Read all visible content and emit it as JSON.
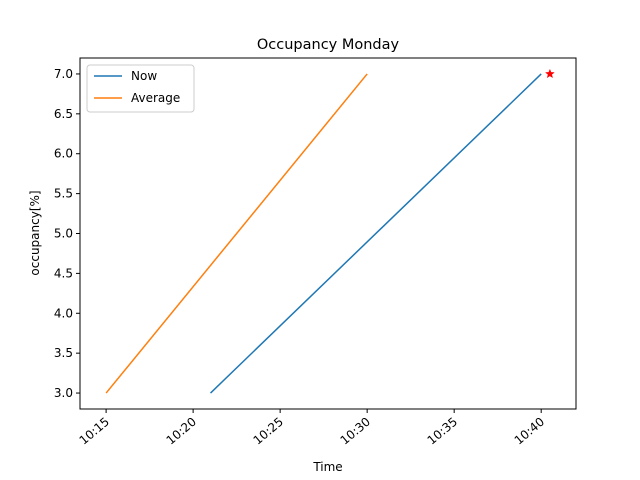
{
  "chart_data": {
    "type": "line",
    "title": "Occupancy Monday",
    "xlabel": "Time",
    "ylabel": "occupancy[%]",
    "x_ticks": [
      "10:15",
      "10:20",
      "10:25",
      "10:30",
      "10:35",
      "10:40"
    ],
    "x_tick_minutes": [
      15,
      20,
      25,
      30,
      35,
      40
    ],
    "xlim": [
      "10:13:30",
      "10:42:00"
    ],
    "xlim_minutes": [
      13.5,
      42.0
    ],
    "y_ticks": [
      "3.0",
      "3.5",
      "4.0",
      "4.5",
      "5.0",
      "5.5",
      "6.0",
      "6.5",
      "7.0"
    ],
    "ylim": [
      2.8,
      7.2
    ],
    "grid": false,
    "legend": "top-left",
    "series": [
      {
        "name": "Now",
        "color": "#1f77b4",
        "x": [
          "10:21",
          "10:40"
        ],
        "x_minutes": [
          21.0,
          40.0
        ],
        "y": [
          3.0,
          7.0
        ]
      },
      {
        "name": "Average",
        "color": "#ff7f0e",
        "x": [
          "10:15",
          "10:30"
        ],
        "x_minutes": [
          15.0,
          30.0
        ],
        "y": [
          3.0,
          7.0
        ]
      }
    ],
    "markers": [
      {
        "shape": "star",
        "color": "#ff0000",
        "x": "10:40:30",
        "x_minutes": 40.5,
        "y": 7.0
      }
    ]
  }
}
